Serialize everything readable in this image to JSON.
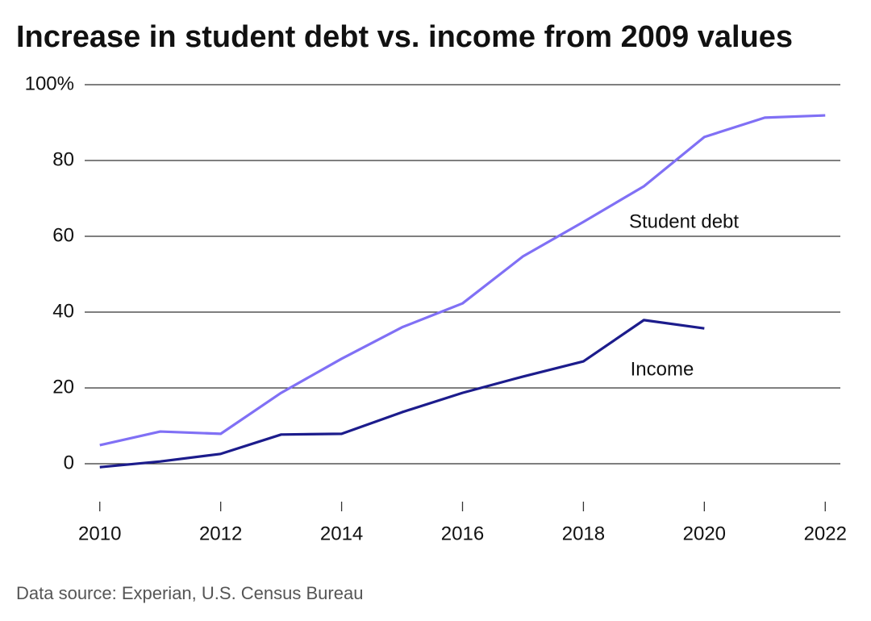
{
  "chart_data": {
    "type": "line",
    "title": "Increase in student debt vs. income from 2009 values",
    "source": "Data source: Experian, U.S. Census Bureau",
    "x": [
      2010,
      2011,
      2012,
      2013,
      2014,
      2015,
      2016,
      2017,
      2018,
      2019,
      2020,
      2021,
      2022
    ],
    "series": [
      {
        "name": "Student debt",
        "color": "#8070f5",
        "values": [
          4.9,
          8.5,
          7.9,
          18.7,
          27.7,
          36,
          42.3,
          54.7,
          63.8,
          73.2,
          86.2,
          91.3,
          91.9
        ]
      },
      {
        "name": "Income",
        "color": "#1c1c8c",
        "values": [
          -0.9,
          0.6,
          2.6,
          7.7,
          7.9,
          13.6,
          18.7,
          23,
          27,
          37.9,
          35.7,
          null,
          null
        ]
      }
    ],
    "xlim": [
      2009.75,
      2022.25
    ],
    "xticks": [
      2010,
      2012,
      2014,
      2016,
      2018,
      2020,
      2022
    ],
    "ylim": [
      -10,
      100
    ],
    "yticks": [
      0,
      20,
      40,
      60,
      80,
      {
        "value": 100,
        "label": "100%"
      }
    ],
    "grid": true
  }
}
